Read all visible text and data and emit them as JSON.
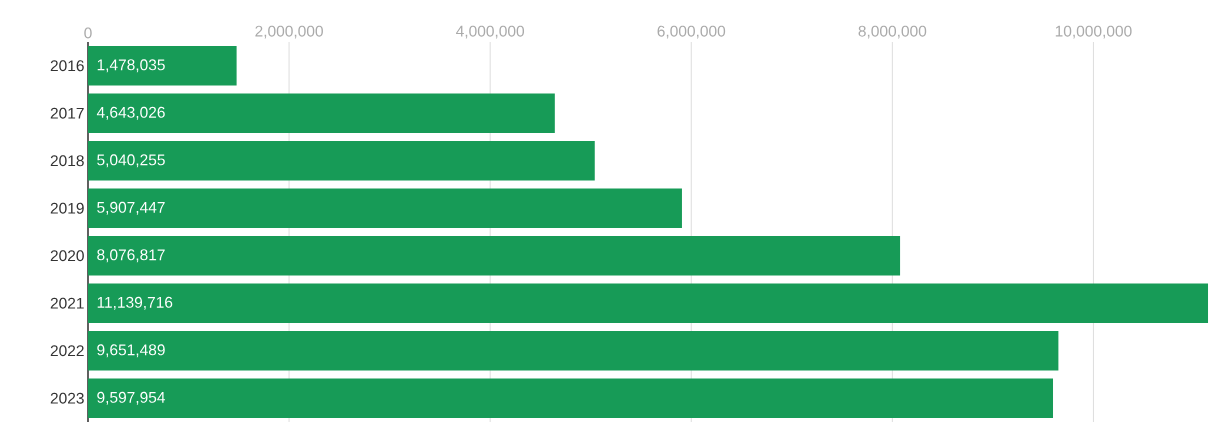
{
  "chart_data": {
    "type": "bar",
    "orientation": "horizontal",
    "categories": [
      "2016",
      "2017",
      "2018",
      "2019",
      "2020",
      "2021",
      "2022",
      "2023"
    ],
    "values": [
      1478035,
      4643026,
      5040255,
      5907447,
      8076817,
      11139716,
      9651489,
      9597954
    ],
    "value_labels": [
      "1,478,035",
      "4,643,026",
      "5,040,255",
      "5,907,447",
      "8,076,817",
      "11,139,716",
      "9,651,489",
      "9,597,954"
    ],
    "color": "#179b57",
    "xlim": [
      0,
      11139716
    ],
    "xticks": [
      0,
      {
        "value": 2000000,
        "label": "2,000,000"
      },
      {
        "value": 4000000,
        "label": "4,000,000"
      },
      {
        "value": 6000000,
        "label": "6,000,000"
      },
      {
        "value": 8000000,
        "label": "8,000,000"
      },
      {
        "value": 10000000,
        "label": "10,000,000"
      }
    ],
    "grid": "x"
  }
}
